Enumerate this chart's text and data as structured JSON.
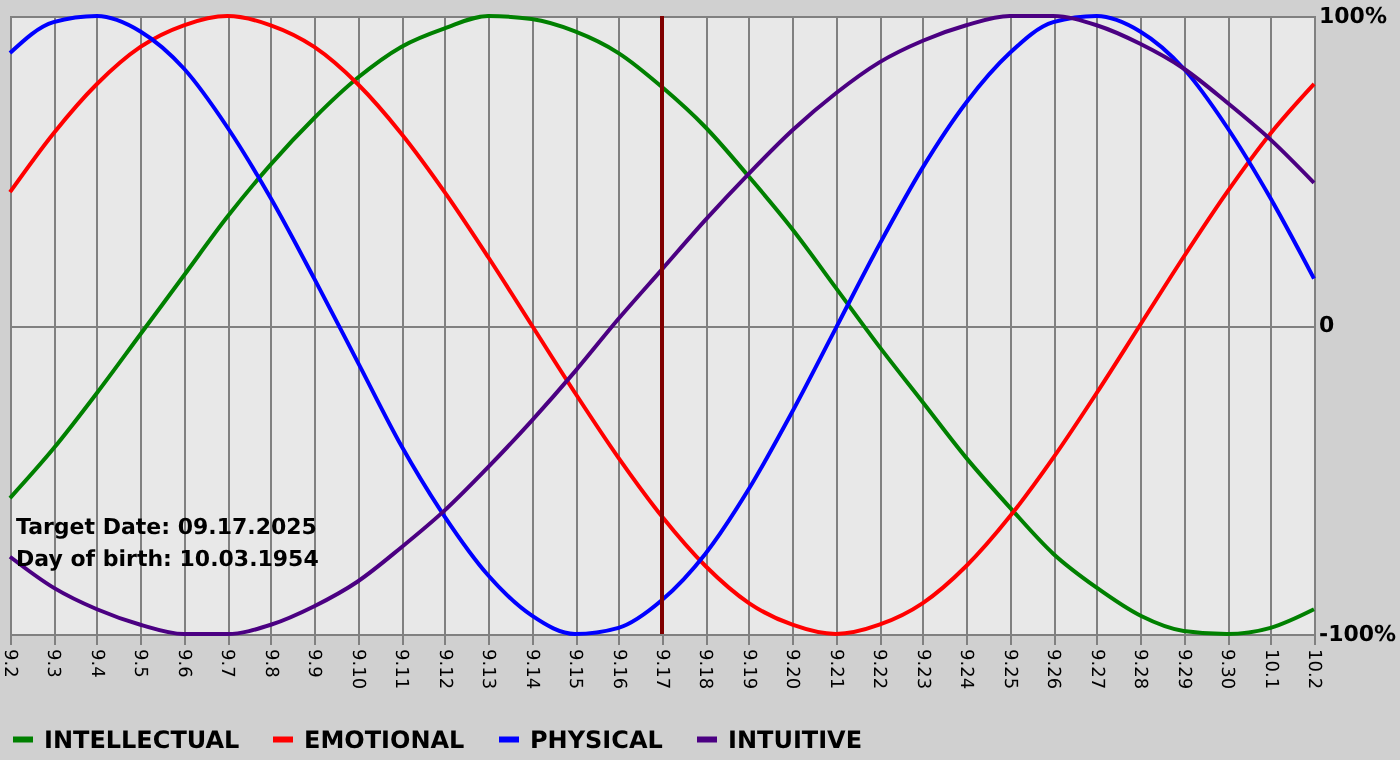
{
  "chart_data": {
    "type": "line",
    "categories": [
      "9.2",
      "9.3",
      "9.4",
      "9.5",
      "9.6",
      "9.7",
      "9.8",
      "9.9",
      "9.10",
      "9.11",
      "9.12",
      "9.13",
      "9.14",
      "9.15",
      "9.16",
      "9.17",
      "9.18",
      "9.19",
      "9.20",
      "9.21",
      "9.22",
      "9.23",
      "9.24",
      "9.25",
      "9.26",
      "9.27",
      "9.28",
      "9.29",
      "9.30",
      "10.1",
      "10.2"
    ],
    "series": [
      {
        "name": "INTELLECTUAL",
        "color": "#008000",
        "values": [
          -56,
          -40,
          -22,
          -3,
          16,
          35,
          52,
          67,
          80,
          90,
          96,
          100,
          99,
          95,
          88,
          77,
          64,
          48,
          31,
          12,
          -7,
          -25,
          -43,
          -59,
          -74,
          -85,
          -94,
          -99,
          -100,
          -98,
          -92
        ]
      },
      {
        "name": "EMOTIONAL",
        "color": "#ff0000",
        "values": [
          43,
          62,
          78,
          90,
          97,
          100,
          97,
          90,
          78,
          62,
          43,
          22,
          0,
          -22,
          -43,
          -62,
          -78,
          -90,
          -97,
          -100,
          -97,
          -90,
          -78,
          -62,
          -43,
          -22,
          0,
          22,
          43,
          62,
          78
        ]
      },
      {
        "name": "PHYSICAL",
        "color": "#0000ff",
        "values": [
          88,
          98,
          100,
          95,
          83,
          64,
          41,
          15,
          -12,
          -39,
          -62,
          -81,
          -94,
          -100,
          -98,
          -89,
          -74,
          -53,
          -28,
          -1,
          26,
          51,
          72,
          88,
          98,
          100,
          95,
          83,
          64,
          41,
          15
        ]
      },
      {
        "name": "INTUITIVE",
        "color": "#4b0082",
        "values": [
          -75,
          -85,
          -92,
          -97,
          -100,
          -100,
          -97,
          -91,
          -83,
          -72,
          -60,
          -46,
          -31,
          -15,
          2,
          18,
          34,
          49,
          63,
          75,
          85,
          92,
          97,
          100,
          100,
          97,
          91,
          83,
          72,
          60,
          46
        ]
      }
    ],
    "ylim": [
      -100,
      100
    ],
    "yticks": [
      {
        "value": -100,
        "label": "-100%"
      },
      0,
      {
        "value": 100,
        "label": "100%"
      }
    ],
    "ref_lines": [
      {
        "axis": "x",
        "value": "9.17",
        "label": null,
        "color": "#800000"
      }
    ],
    "annotations": [
      "Target Date: 09.17.2025",
      "Day of birth: 10.03.1954"
    ],
    "grid": true,
    "legend": "bottom",
    "marker": "none",
    "line_style": "solid"
  }
}
